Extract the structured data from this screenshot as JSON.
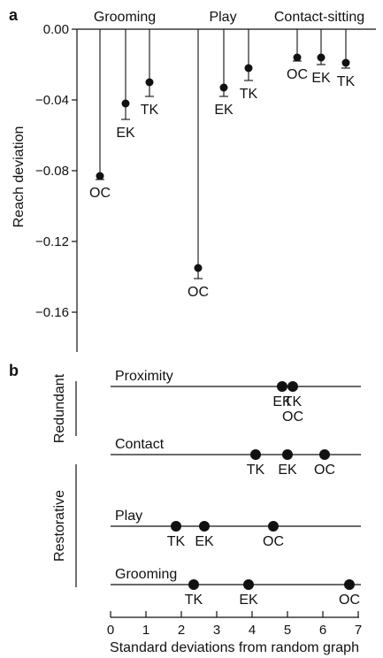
{
  "chart_data": [
    {
      "panel": "a",
      "type": "scatter",
      "ylabel": "Reach deviation",
      "ylim": [
        -0.18,
        0.0
      ],
      "yticks": [
        "0.00",
        "−0.04",
        "−0.08",
        "−0.12",
        "−0.16"
      ],
      "grid": false,
      "groups": [
        {
          "name": "Grooming",
          "points": [
            {
              "label": "OC",
              "value": -0.083,
              "err": 0.002
            },
            {
              "label": "EK",
              "value": -0.042,
              "err": 0.009
            },
            {
              "label": "TK",
              "value": -0.03,
              "err": 0.008
            }
          ]
        },
        {
          "name": "Play",
          "points": [
            {
              "label": "OC",
              "value": -0.135,
              "err": 0.006
            },
            {
              "label": "EK",
              "value": -0.033,
              "err": 0.005
            },
            {
              "label": "TK",
              "value": -0.022,
              "err": 0.007
            }
          ]
        },
        {
          "name": "Contact-sitting",
          "points": [
            {
              "label": "OC",
              "value": -0.016,
              "err": 0.002
            },
            {
              "label": "EK",
              "value": -0.016,
              "err": 0.004
            },
            {
              "label": "TK",
              "value": -0.019,
              "err": 0.003
            }
          ]
        }
      ]
    },
    {
      "panel": "b",
      "type": "scatter",
      "xlabel": "Standard deviations from random graph",
      "xlim": [
        0,
        7
      ],
      "xticks": [
        "0",
        "1",
        "2",
        "3",
        "4",
        "5",
        "6",
        "7"
      ],
      "grid": false,
      "categories": [
        {
          "name": "Redundant",
          "rows": [
            "Proximity"
          ]
        },
        {
          "name": "Restorative",
          "rows": [
            "Contact",
            "Play",
            "Grooming"
          ]
        }
      ],
      "rows": [
        {
          "name": "Proximity",
          "points": [
            {
              "label": "EK",
              "x": 4.85
            },
            {
              "label": "TK",
              "x": 5.15
            },
            {
              "label": "OC",
              "x": 5.15
            }
          ]
        },
        {
          "name": "Contact",
          "points": [
            {
              "label": "TK",
              "x": 4.1
            },
            {
              "label": "EK",
              "x": 5.0
            },
            {
              "label": "OC",
              "x": 6.05
            }
          ]
        },
        {
          "name": "Play",
          "points": [
            {
              "label": "TK",
              "x": 1.85
            },
            {
              "label": "EK",
              "x": 2.65
            },
            {
              "label": "OC",
              "x": 4.6
            }
          ]
        },
        {
          "name": "Grooming",
          "points": [
            {
              "label": "TK",
              "x": 2.35
            },
            {
              "label": "EK",
              "x": 3.9
            },
            {
              "label": "OC",
              "x": 6.75
            }
          ]
        }
      ]
    }
  ]
}
